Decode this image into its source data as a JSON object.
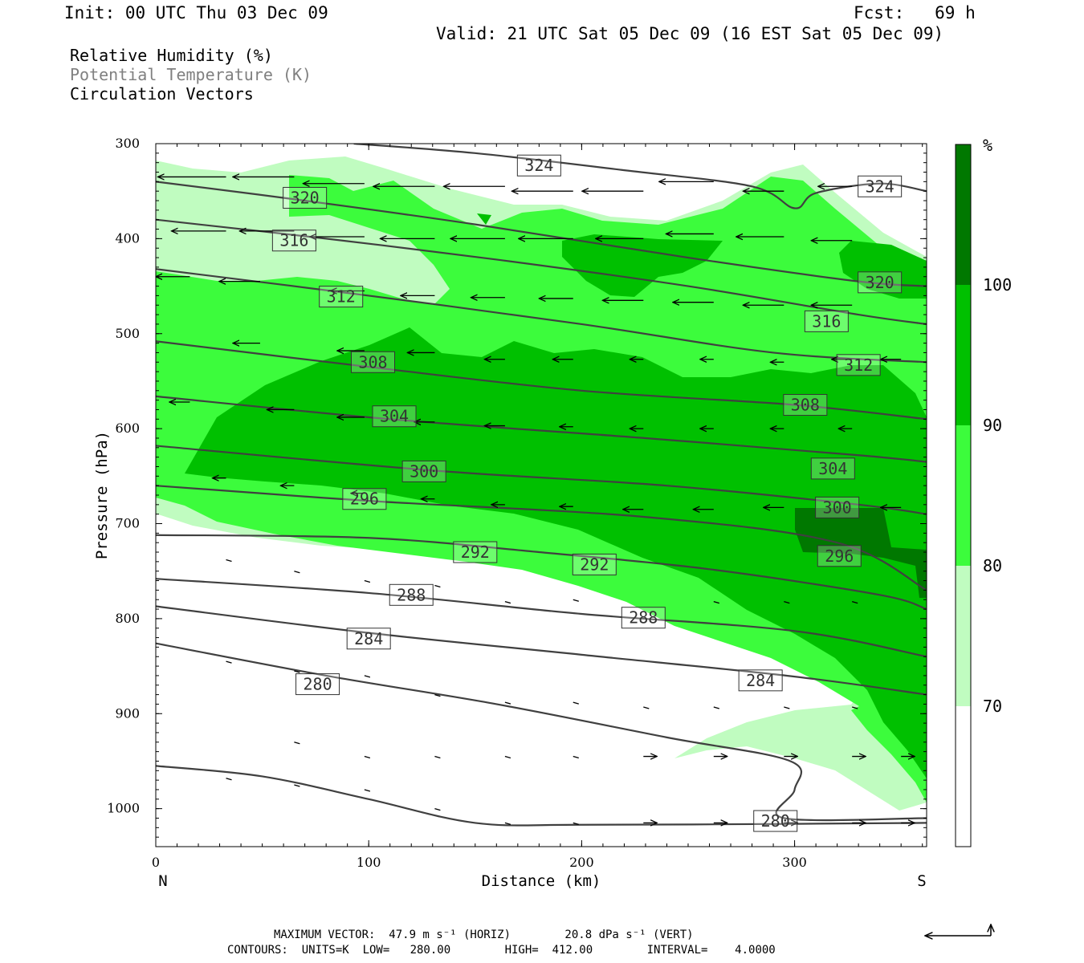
{
  "header": {
    "init": "Init: 00 UTC Thu 03 Dec 09",
    "fcst": "Fcst:   69 h",
    "valid": "Valid: 21 UTC Sat 05 Dec 09 (16 EST Sat 05 Dec 09)"
  },
  "legend": {
    "rh": "Relative Humidity (%)",
    "theta": "Potential Temperature (K)",
    "vectors": "Circulation Vectors"
  },
  "footer": {
    "max_vector": "MAXIMUM VECTOR:  47.9 m s⁻¹ (HORIZ)        20.8 dPa s⁻¹ (VERT)",
    "contours": "CONTOURS:  UNITS=K  LOW=   280.00        HIGH=  412.00        INTERVAL=    4.0000"
  },
  "colors": {
    "rh_70_80": "#c0fcc0",
    "rh_80_90": "#3cfc3c",
    "rh_90_100": "#00c000",
    "rh_100": "#007800",
    "contour": "#404040"
  },
  "chart_data": {
    "type": "heatmap",
    "title": "",
    "xlabel": "Distance (km)",
    "ylabel": "Pressure (hPa)",
    "xlim": [
      0,
      362
    ],
    "ylim": [
      1040,
      300
    ],
    "x_ticks": [
      "0",
      "100",
      "200",
      "300"
    ],
    "x_tick_values": [
      0,
      100,
      200,
      300
    ],
    "y_ticks": [
      "300",
      "400",
      "500",
      "600",
      "700",
      "800",
      "900",
      "1000"
    ],
    "y_tick_values": [
      300,
      400,
      500,
      600,
      700,
      800,
      900,
      1000
    ],
    "x_end_labels": {
      "left": "N",
      "right": "S"
    },
    "colorbar": {
      "unit": "%",
      "levels": [
        "70",
        "80",
        "90",
        "100"
      ],
      "level_values": [
        70,
        80,
        90,
        100
      ]
    },
    "contour_units": "K",
    "contour_interval": 4,
    "contours": [
      {
        "level": 324,
        "points": [
          [
            93,
            300
          ],
          [
            150,
            310
          ],
          [
            220,
            328
          ],
          [
            280,
            345
          ],
          [
            300,
            368
          ],
          [
            310,
            352
          ],
          [
            340,
            342
          ],
          [
            362,
            350
          ]
        ],
        "labels": [
          [
            180,
            323
          ],
          [
            340,
            345
          ]
        ]
      },
      {
        "level": 320,
        "points": [
          [
            0,
            340
          ],
          [
            70,
            360
          ],
          [
            150,
            385
          ],
          [
            250,
            420
          ],
          [
            330,
            445
          ],
          [
            362,
            450
          ]
        ],
        "labels": [
          [
            70,
            357
          ],
          [
            340,
            446
          ]
        ]
      },
      {
        "level": 316,
        "points": [
          [
            0,
            380
          ],
          [
            80,
            400
          ],
          [
            160,
            422
          ],
          [
            250,
            450
          ],
          [
            330,
            480
          ],
          [
            362,
            490
          ]
        ],
        "labels": [
          [
            65,
            402
          ],
          [
            315,
            487
          ]
        ]
      },
      {
        "level": 312,
        "points": [
          [
            0,
            432
          ],
          [
            100,
            460
          ],
          [
            200,
            490
          ],
          [
            290,
            520
          ],
          [
            362,
            530
          ]
        ],
        "labels": [
          [
            87,
            461
          ],
          [
            330,
            533
          ]
        ]
      },
      {
        "level": 308,
        "points": [
          [
            0,
            508
          ],
          [
            100,
            535
          ],
          [
            200,
            560
          ],
          [
            300,
            575
          ],
          [
            362,
            590
          ]
        ],
        "labels": [
          [
            102,
            530
          ],
          [
            305,
            575
          ]
        ]
      },
      {
        "level": 304,
        "points": [
          [
            0,
            566
          ],
          [
            110,
            590
          ],
          [
            230,
            610
          ],
          [
            330,
            628
          ],
          [
            362,
            635
          ]
        ],
        "labels": [
          [
            112,
            587
          ],
          [
            318,
            642
          ]
        ]
      },
      {
        "level": 300,
        "points": [
          [
            0,
            618
          ],
          [
            130,
            644
          ],
          [
            240,
            660
          ],
          [
            330,
            680
          ],
          [
            362,
            690
          ]
        ],
        "labels": [
          [
            126,
            645
          ],
          [
            320,
            683
          ]
        ]
      },
      {
        "level": 296,
        "points": [
          [
            0,
            660
          ],
          [
            100,
            676
          ],
          [
            230,
            693
          ],
          [
            320,
            720
          ],
          [
            362,
            770
          ]
        ],
        "labels": [
          [
            98,
            674
          ],
          [
            321,
            734
          ]
        ]
      },
      {
        "level": 292,
        "points": [
          [
            0,
            712
          ],
          [
            100,
            715
          ],
          [
            180,
            730
          ],
          [
            260,
            748
          ],
          [
            340,
            775
          ],
          [
            362,
            790
          ]
        ],
        "labels": [
          [
            150,
            730
          ],
          [
            206,
            743
          ]
        ]
      },
      {
        "level": 288,
        "points": [
          [
            0,
            758
          ],
          [
            100,
            773
          ],
          [
            200,
            795
          ],
          [
            300,
            813
          ],
          [
            362,
            840
          ]
        ],
        "labels": [
          [
            120,
            775
          ],
          [
            229,
            799
          ]
        ]
      },
      {
        "level": 284,
        "points": [
          [
            0,
            787
          ],
          [
            100,
            815
          ],
          [
            200,
            838
          ],
          [
            300,
            861
          ],
          [
            362,
            880
          ]
        ],
        "labels": [
          [
            100,
            821
          ],
          [
            284,
            865
          ]
        ]
      },
      {
        "level": 280,
        "points": [
          [
            0,
            826
          ],
          [
            80,
            860
          ],
          [
            160,
            890
          ],
          [
            240,
            925
          ],
          [
            298,
            950
          ],
          [
            300,
            980
          ],
          [
            295,
            1010
          ],
          [
            362,
            1010
          ]
        ],
        "labels": [
          [
            76,
            869
          ],
          [
            291,
            1013
          ]
        ]
      },
      {
        "level": 280,
        "points": [
          [
            0,
            955
          ],
          [
            50,
            966
          ],
          [
            100,
            990
          ],
          [
            150,
            1015
          ],
          [
            200,
            1017
          ],
          [
            300,
            1016
          ],
          [
            362,
            1015
          ]
        ],
        "labels": []
      }
    ],
    "max_vector": {
      "horiz_m_s": 47.9,
      "vert_dPa_s": 20.8
    },
    "vectors": [
      {
        "x": 0,
        "p": 335,
        "u": -1.0
      },
      {
        "x": 33,
        "p": 335,
        "u": -1.0
      },
      {
        "x": 65,
        "p": 335,
        "u": -0.9
      },
      {
        "x": 98,
        "p": 342,
        "u": -0.9
      },
      {
        "x": 131,
        "p": 345,
        "u": -0.9
      },
      {
        "x": 164,
        "p": 345,
        "u": -0.9
      },
      {
        "x": 196,
        "p": 350,
        "u": -0.9
      },
      {
        "x": 229,
        "p": 350,
        "u": -0.9
      },
      {
        "x": 262,
        "p": 340,
        "u": -0.8
      },
      {
        "x": 295,
        "p": 350,
        "u": -0.6
      },
      {
        "x": 327,
        "p": 345,
        "u": -0.5
      },
      {
        "x": 0,
        "p": 385,
        "u": -0.8
      },
      {
        "x": 33,
        "p": 392,
        "u": -0.8
      },
      {
        "x": 65,
        "p": 392,
        "u": -0.8
      },
      {
        "x": 98,
        "p": 398,
        "u": -0.8
      },
      {
        "x": 131,
        "p": 400,
        "u": -0.8
      },
      {
        "x": 164,
        "p": 400,
        "u": -0.8
      },
      {
        "x": 196,
        "p": 400,
        "u": -0.8
      },
      {
        "x": 229,
        "p": 400,
        "u": -0.7
      },
      {
        "x": 262,
        "p": 395,
        "u": -0.7
      },
      {
        "x": 295,
        "p": 398,
        "u": -0.7
      },
      {
        "x": 327,
        "p": 402,
        "u": -0.6
      },
      {
        "x": 16,
        "p": 440,
        "u": -0.5
      },
      {
        "x": 49,
        "p": 445,
        "u": -0.6
      },
      {
        "x": 98,
        "p": 455,
        "u": -0.5
      },
      {
        "x": 131,
        "p": 460,
        "u": -0.5
      },
      {
        "x": 164,
        "p": 462,
        "u": -0.5
      },
      {
        "x": 196,
        "p": 463,
        "u": -0.5
      },
      {
        "x": 229,
        "p": 465,
        "u": -0.6
      },
      {
        "x": 262,
        "p": 467,
        "u": -0.6
      },
      {
        "x": 295,
        "p": 470,
        "u": -0.6
      },
      {
        "x": 327,
        "p": 470,
        "u": -0.6
      },
      {
        "x": 0,
        "p": 505,
        "u": -0.4
      },
      {
        "x": 49,
        "p": 510,
        "u": -0.4
      },
      {
        "x": 98,
        "p": 518,
        "u": -0.4
      },
      {
        "x": 131,
        "p": 520,
        "u": -0.4
      },
      {
        "x": 164,
        "p": 527,
        "u": -0.3
      },
      {
        "x": 196,
        "p": 527,
        "u": -0.3
      },
      {
        "x": 229,
        "p": 527,
        "u": -0.2
      },
      {
        "x": 262,
        "p": 527,
        "u": -0.2
      },
      {
        "x": 295,
        "p": 530,
        "u": -0.2
      },
      {
        "x": 327,
        "p": 527,
        "u": -0.3
      },
      {
        "x": 350,
        "p": 527,
        "u": -0.3
      },
      {
        "x": 16,
        "p": 572,
        "u": -0.3
      },
      {
        "x": 65,
        "p": 580,
        "u": -0.4
      },
      {
        "x": 98,
        "p": 588,
        "u": -0.4
      },
      {
        "x": 131,
        "p": 593,
        "u": -0.3
      },
      {
        "x": 164,
        "p": 597,
        "u": -0.3
      },
      {
        "x": 196,
        "p": 598,
        "u": -0.2
      },
      {
        "x": 229,
        "p": 600,
        "u": -0.2
      },
      {
        "x": 262,
        "p": 600,
        "u": -0.2
      },
      {
        "x": 295,
        "p": 600,
        "u": -0.2
      },
      {
        "x": 327,
        "p": 600,
        "u": -0.2
      },
      {
        "x": 33,
        "p": 652,
        "u": -0.2
      },
      {
        "x": 65,
        "p": 660,
        "u": -0.2
      },
      {
        "x": 98,
        "p": 668,
        "u": -0.2
      },
      {
        "x": 131,
        "p": 674,
        "u": -0.2
      },
      {
        "x": 164,
        "p": 680,
        "u": -0.2
      },
      {
        "x": 196,
        "p": 682,
        "u": -0.2
      },
      {
        "x": 229,
        "p": 685,
        "u": -0.3
      },
      {
        "x": 262,
        "p": 685,
        "u": -0.3
      },
      {
        "x": 295,
        "p": 683,
        "u": -0.3
      },
      {
        "x": 350,
        "p": 683,
        "u": -0.3
      },
      {
        "x": 33,
        "p": 738,
        "u": 0.0
      },
      {
        "x": 65,
        "p": 750,
        "u": 0.0
      },
      {
        "x": 98,
        "p": 760,
        "u": 0.0
      },
      {
        "x": 131,
        "p": 765,
        "u": 0.0
      },
      {
        "x": 164,
        "p": 782,
        "u": 0.0
      },
      {
        "x": 196,
        "p": 780,
        "u": 0.0
      },
      {
        "x": 262,
        "p": 782,
        "u": 0.0
      },
      {
        "x": 295,
        "p": 782,
        "u": 0.0
      },
      {
        "x": 327,
        "p": 782,
        "u": 0.0
      },
      {
        "x": 33,
        "p": 845,
        "u": 0.1
      },
      {
        "x": 65,
        "p": 855,
        "u": 0.1
      },
      {
        "x": 98,
        "p": 860,
        "u": 0.1
      },
      {
        "x": 131,
        "p": 880,
        "u": 0.1
      },
      {
        "x": 164,
        "p": 888,
        "u": 0.1
      },
      {
        "x": 196,
        "p": 888,
        "u": 0.1
      },
      {
        "x": 229,
        "p": 893,
        "u": 0.1
      },
      {
        "x": 262,
        "p": 893,
        "u": 0.1
      },
      {
        "x": 295,
        "p": 893,
        "u": 0.1
      },
      {
        "x": 327,
        "p": 893,
        "u": 0.1
      },
      {
        "x": 65,
        "p": 930,
        "u": 0.1
      },
      {
        "x": 98,
        "p": 945,
        "u": 0.1
      },
      {
        "x": 131,
        "p": 945,
        "u": 0.1
      },
      {
        "x": 164,
        "p": 945,
        "u": 0.1
      },
      {
        "x": 196,
        "p": 945,
        "u": 0.1
      },
      {
        "x": 229,
        "p": 945,
        "u": 0.2
      },
      {
        "x": 262,
        "p": 945,
        "u": 0.2
      },
      {
        "x": 295,
        "p": 945,
        "u": 0.2
      },
      {
        "x": 327,
        "p": 945,
        "u": 0.2
      },
      {
        "x": 350,
        "p": 945,
        "u": 0.2
      },
      {
        "x": 33,
        "p": 968,
        "u": 0.1
      },
      {
        "x": 65,
        "p": 975,
        "u": 0.1
      },
      {
        "x": 98,
        "p": 980,
        "u": 0.1
      },
      {
        "x": 131,
        "p": 1000,
        "u": 0.1
      },
      {
        "x": 164,
        "p": 1015,
        "u": 0.1
      },
      {
        "x": 196,
        "p": 1015,
        "u": 0.1
      },
      {
        "x": 229,
        "p": 1015,
        "u": 0.2
      },
      {
        "x": 262,
        "p": 1015,
        "u": 0.2
      },
      {
        "x": 295,
        "p": 1015,
        "u": 0.2
      },
      {
        "x": 327,
        "p": 1015,
        "u": 0.2
      },
      {
        "x": 350,
        "p": 1015,
        "u": 0.2
      }
    ]
  }
}
